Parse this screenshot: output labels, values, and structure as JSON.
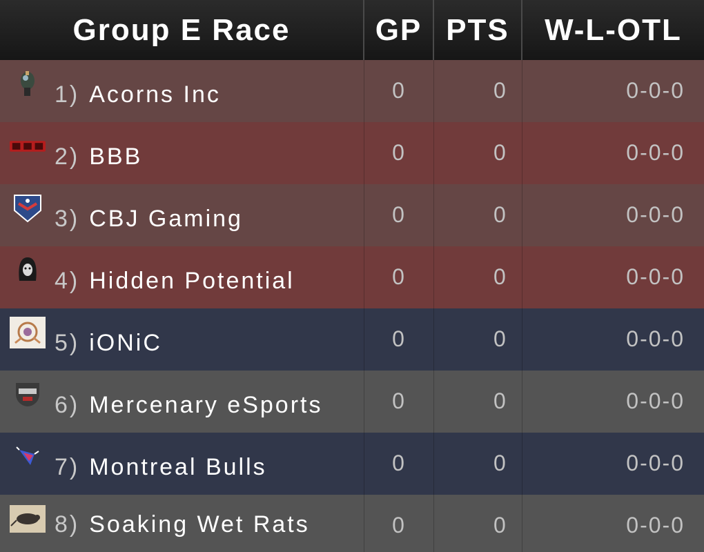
{
  "header": {
    "title": "Group E Race",
    "gp": "GP",
    "pts": "PTS",
    "record": "W-L-OTL"
  },
  "colors": {
    "header_bg": "#1f1f1f",
    "row_brown": "#654645",
    "row_red": "#713b3b",
    "row_navy": "#31374a",
    "row_gray": "#545454"
  },
  "rows": [
    {
      "rank": "1)",
      "team": "Acorns Inc",
      "gp": "0",
      "pts": "0",
      "record": "0-0-0",
      "row_color": "#654645",
      "logo": "acorn-helmet-logo"
    },
    {
      "rank": "2)",
      "team": "BBB",
      "gp": "0",
      "pts": "0",
      "record": "0-0-0",
      "row_color": "#713b3b",
      "logo": "bbb-wordmark-logo"
    },
    {
      "rank": "3)",
      "team": "CBJ Gaming",
      "gp": "0",
      "pts": "0",
      "record": "0-0-0",
      "row_color": "#654645",
      "logo": "cbj-shield-logo"
    },
    {
      "rank": "4)",
      "team": "Hidden Potential",
      "gp": "0",
      "pts": "0",
      "record": "0-0-0",
      "row_color": "#713b3b",
      "logo": "hooded-figure-logo"
    },
    {
      "rank": "5)",
      "team": "iONiC",
      "gp": "0",
      "pts": "0",
      "record": "0-0-0",
      "row_color": "#31374a",
      "logo": "ionic-crest-logo"
    },
    {
      "rank": "6)",
      "team": "Mercenary eSports",
      "gp": "0",
      "pts": "0",
      "record": "0-0-0",
      "row_color": "#545454",
      "logo": "mercenary-mask-logo"
    },
    {
      "rank": "7)",
      "team": "Montreal Bulls",
      "gp": "0",
      "pts": "0",
      "record": "0-0-0",
      "row_color": "#31374a",
      "logo": "bull-logo"
    },
    {
      "rank": "8)",
      "team": "Soaking Wet Rats",
      "gp": "0",
      "pts": "0",
      "record": "0-0-0",
      "row_color": "#545454",
      "logo": "rat-logo"
    }
  ]
}
